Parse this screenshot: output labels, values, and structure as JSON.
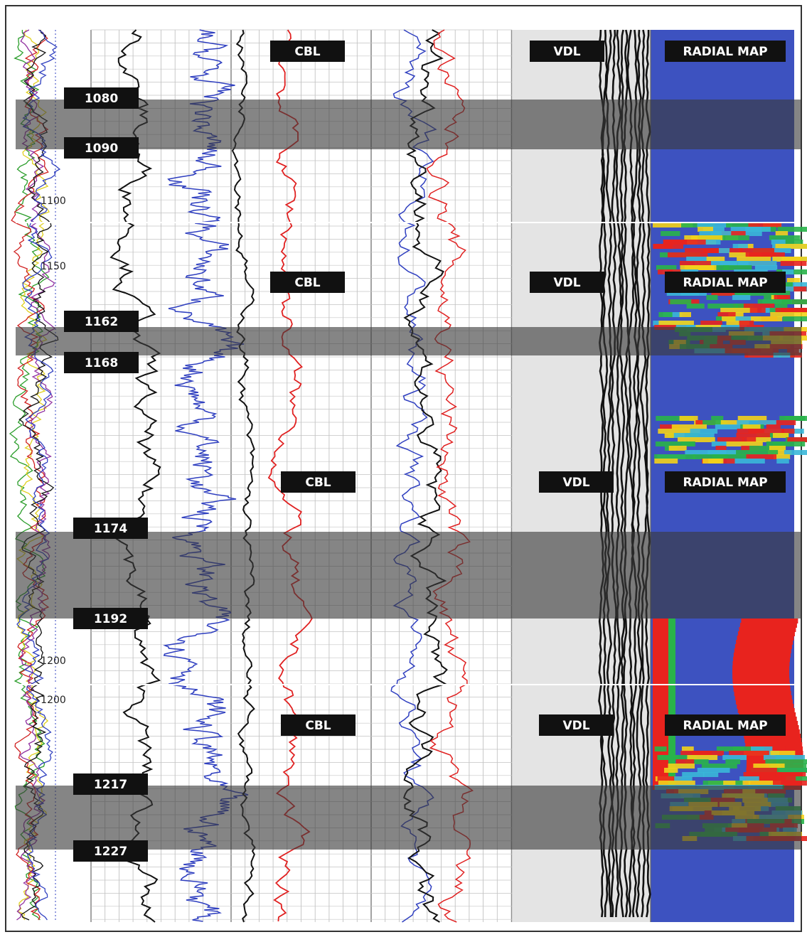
{
  "sections": [
    {
      "cbl": "CBL",
      "vdl": "VDL",
      "radial": "RADIAL MAP"
    },
    {
      "cbl": "CBL",
      "vdl": "VDL",
      "radial": "RADIAL MAP"
    },
    {
      "cbl": "CBL",
      "vdl": "VDL",
      "radial": "RADIAL MAP"
    },
    {
      "cbl": "CBL",
      "vdl": "VDL",
      "radial": "RADIAL MAP"
    }
  ],
  "zones": [
    {
      "top": "1080",
      "bottom": "1090"
    },
    {
      "top": "1162",
      "bottom": "1168"
    },
    {
      "top": "1174",
      "bottom": "1192"
    },
    {
      "top": "1217",
      "bottom": "1227"
    }
  ],
  "depth_labels": [
    "1100",
    "1150",
    "1200",
    "1200"
  ]
}
